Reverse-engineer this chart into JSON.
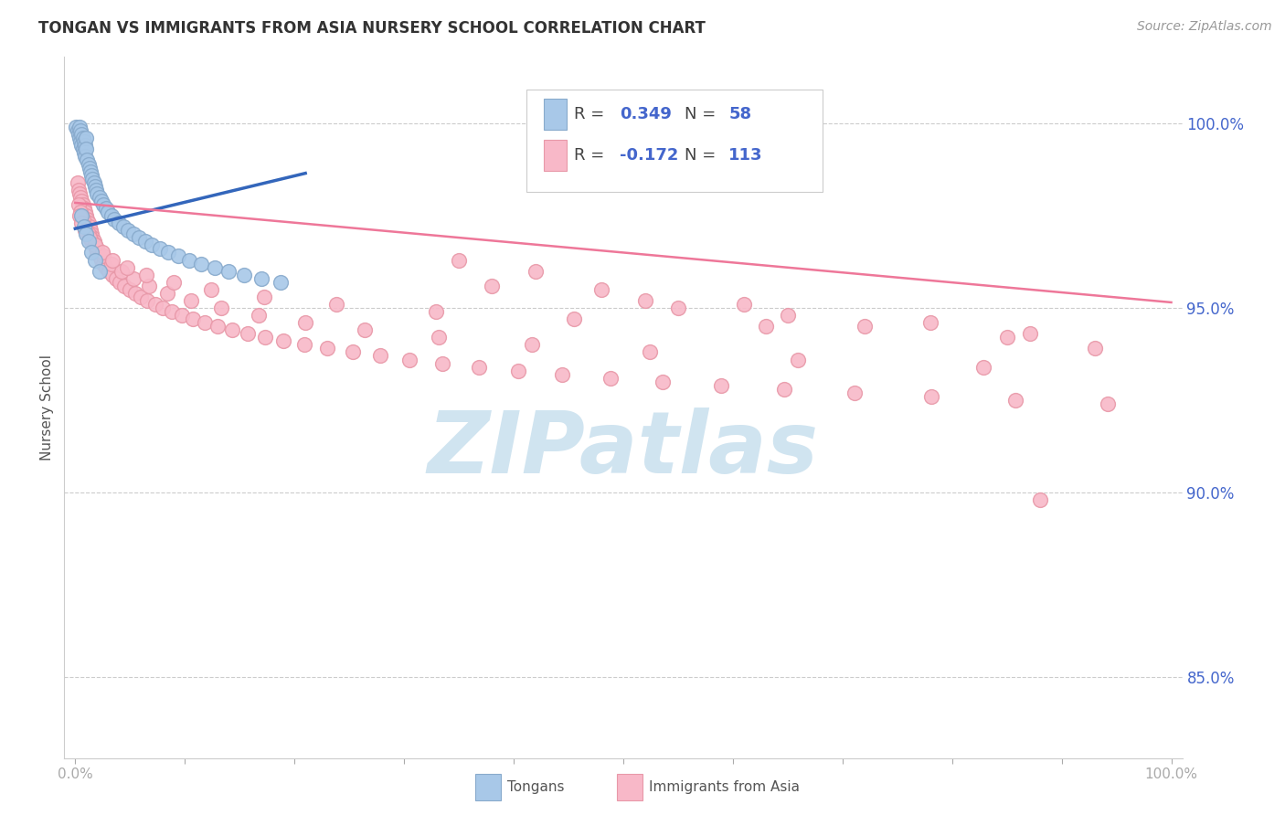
{
  "title": "TONGAN VS IMMIGRANTS FROM ASIA NURSERY SCHOOL CORRELATION CHART",
  "source": "Source: ZipAtlas.com",
  "ylabel": "Nursery School",
  "y_ticks": [
    0.85,
    0.9,
    0.95,
    1.0
  ],
  "y_tick_labels": [
    "85.0%",
    "90.0%",
    "95.0%",
    "100.0%"
  ],
  "ylim": [
    0.828,
    1.018
  ],
  "xlim": [
    -0.01,
    1.01
  ],
  "x_ticks": [
    0.0,
    0.1,
    0.2,
    0.3,
    0.4,
    0.5,
    0.6,
    0.7,
    0.8,
    0.9,
    1.0
  ],
  "background_color": "#ffffff",
  "grid_color": "#cccccc",
  "tongan_color": "#a8c8e8",
  "tongan_edge_color": "#88aacc",
  "asia_color": "#f8b8c8",
  "asia_edge_color": "#e898a8",
  "tongan_line_color": "#3366bb",
  "asia_line_color": "#ee7799",
  "watermark_color": "#d0e4f0",
  "watermark_text": "ZIPatlas",
  "legend_r_tongan": "0.349",
  "legend_n_tongan": "58",
  "legend_r_asia": "-0.172",
  "legend_n_asia": "113",
  "tick_color": "#4466cc",
  "tick_fontsize": 12,
  "title_fontsize": 12,
  "source_fontsize": 10,
  "ylabel_fontsize": 11,
  "legend_fontsize": 13,
  "tongan_scatter_x": [
    0.001,
    0.002,
    0.003,
    0.004,
    0.004,
    0.005,
    0.005,
    0.006,
    0.006,
    0.007,
    0.007,
    0.008,
    0.008,
    0.009,
    0.009,
    0.01,
    0.01,
    0.011,
    0.012,
    0.013,
    0.014,
    0.015,
    0.016,
    0.017,
    0.018,
    0.019,
    0.02,
    0.022,
    0.024,
    0.026,
    0.028,
    0.03,
    0.033,
    0.036,
    0.04,
    0.044,
    0.048,
    0.053,
    0.058,
    0.064,
    0.07,
    0.077,
    0.085,
    0.094,
    0.104,
    0.115,
    0.127,
    0.14,
    0.154,
    0.17,
    0.187,
    0.006,
    0.008,
    0.01,
    0.012,
    0.015,
    0.018,
    0.022
  ],
  "tongan_scatter_y": [
    0.999,
    0.998,
    0.997,
    0.999,
    0.996,
    0.998,
    0.995,
    0.997,
    0.994,
    0.996,
    0.993,
    0.995,
    0.992,
    0.994,
    0.991,
    0.996,
    0.993,
    0.99,
    0.989,
    0.988,
    0.987,
    0.986,
    0.985,
    0.984,
    0.983,
    0.982,
    0.981,
    0.98,
    0.979,
    0.978,
    0.977,
    0.976,
    0.975,
    0.974,
    0.973,
    0.972,
    0.971,
    0.97,
    0.969,
    0.968,
    0.967,
    0.966,
    0.965,
    0.964,
    0.963,
    0.962,
    0.961,
    0.96,
    0.959,
    0.958,
    0.957,
    0.975,
    0.972,
    0.97,
    0.968,
    0.965,
    0.963,
    0.96
  ],
  "tongan_line_x": [
    0.0,
    0.21
  ],
  "tongan_line_y": [
    0.9715,
    0.9865
  ],
  "asia_line_x": [
    0.0,
    1.0
  ],
  "asia_line_y": [
    0.9785,
    0.9515
  ],
  "asia_scatter_x": [
    0.002,
    0.003,
    0.004,
    0.005,
    0.006,
    0.007,
    0.008,
    0.009,
    0.01,
    0.011,
    0.012,
    0.013,
    0.014,
    0.015,
    0.016,
    0.017,
    0.018,
    0.019,
    0.02,
    0.022,
    0.024,
    0.026,
    0.028,
    0.031,
    0.034,
    0.037,
    0.041,
    0.045,
    0.05,
    0.055,
    0.06,
    0.066,
    0.073,
    0.08,
    0.088,
    0.097,
    0.107,
    0.118,
    0.13,
    0.143,
    0.157,
    0.173,
    0.19,
    0.209,
    0.23,
    0.253,
    0.278,
    0.305,
    0.335,
    0.368,
    0.404,
    0.444,
    0.488,
    0.536,
    0.589,
    0.647,
    0.711,
    0.781,
    0.858,
    0.942,
    0.003,
    0.005,
    0.007,
    0.009,
    0.012,
    0.015,
    0.02,
    0.026,
    0.033,
    0.042,
    0.053,
    0.067,
    0.084,
    0.106,
    0.133,
    0.167,
    0.21,
    0.264,
    0.332,
    0.417,
    0.524,
    0.659,
    0.829,
    0.004,
    0.006,
    0.009,
    0.013,
    0.018,
    0.025,
    0.034,
    0.047,
    0.065,
    0.09,
    0.124,
    0.172,
    0.238,
    0.329,
    0.455,
    0.63,
    0.871,
    0.38,
    0.52,
    0.65,
    0.42,
    0.48,
    0.55,
    0.35,
    0.72,
    0.85,
    0.93,
    0.61,
    0.78,
    0.88
  ],
  "asia_scatter_y": [
    0.984,
    0.982,
    0.981,
    0.98,
    0.979,
    0.978,
    0.977,
    0.976,
    0.975,
    0.974,
    0.973,
    0.972,
    0.971,
    0.97,
    0.969,
    0.968,
    0.967,
    0.966,
    0.965,
    0.964,
    0.963,
    0.962,
    0.961,
    0.96,
    0.959,
    0.958,
    0.957,
    0.956,
    0.955,
    0.954,
    0.953,
    0.952,
    0.951,
    0.95,
    0.949,
    0.948,
    0.947,
    0.946,
    0.945,
    0.944,
    0.943,
    0.942,
    0.941,
    0.94,
    0.939,
    0.938,
    0.937,
    0.936,
    0.935,
    0.934,
    0.933,
    0.932,
    0.931,
    0.93,
    0.929,
    0.928,
    0.927,
    0.926,
    0.925,
    0.924,
    0.978,
    0.976,
    0.974,
    0.972,
    0.97,
    0.968,
    0.966,
    0.964,
    0.962,
    0.96,
    0.958,
    0.956,
    0.954,
    0.952,
    0.95,
    0.948,
    0.946,
    0.944,
    0.942,
    0.94,
    0.938,
    0.936,
    0.934,
    0.975,
    0.973,
    0.971,
    0.969,
    0.967,
    0.965,
    0.963,
    0.961,
    0.959,
    0.957,
    0.955,
    0.953,
    0.951,
    0.949,
    0.947,
    0.945,
    0.943,
    0.956,
    0.952,
    0.948,
    0.96,
    0.955,
    0.95,
    0.963,
    0.945,
    0.942,
    0.939,
    0.951,
    0.946,
    0.898
  ]
}
